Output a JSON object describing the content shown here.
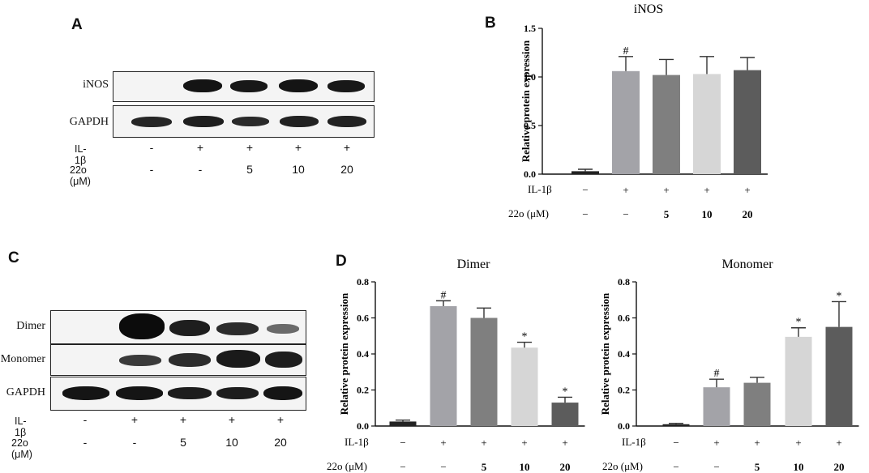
{
  "panels": {
    "A": {
      "letter": "A",
      "blot_rows": [
        "iNOS",
        "GAPDH"
      ],
      "conditions": [
        {
          "label": "IL-1β",
          "values": [
            "-",
            "+",
            "+",
            "+",
            "+"
          ]
        },
        {
          "label": "22o (μM)",
          "values": [
            "-",
            "-",
            "5",
            "10",
            "20"
          ]
        }
      ]
    },
    "B": {
      "letter": "B"
    },
    "C": {
      "letter": "C",
      "blot_rows": [
        "Dimer",
        "Monomer",
        "GAPDH"
      ],
      "conditions": [
        {
          "label": "IL-1β",
          "values": [
            "-",
            "+",
            "+",
            "+",
            "+"
          ]
        },
        {
          "label": "22o (μM)",
          "values": [
            "-",
            "-",
            "5",
            "10",
            "20"
          ]
        }
      ]
    },
    "D": {
      "letter": "D"
    }
  },
  "chart_data": [
    {
      "id": "B",
      "type": "bar",
      "title": "iNOS",
      "xlabel": "",
      "ylabel": "Relative protein expression",
      "ylim": [
        0,
        1.5
      ],
      "yticks": [
        "0.0",
        "0.5",
        "1.0",
        "1.5"
      ],
      "yticks_values": [
        0,
        0.5,
        1.0,
        1.5
      ],
      "values": [
        0.03,
        1.06,
        1.02,
        1.03,
        1.07
      ],
      "errors": [
        0.02,
        0.15,
        0.16,
        0.18,
        0.13
      ],
      "annotations": [
        "",
        "#",
        "",
        "",
        ""
      ],
      "colors": [
        "#222222",
        "#a3a3a8",
        "#7f7f7f",
        "#d6d6d6",
        "#5c5c5c"
      ],
      "row_labels": [
        "IL-1β",
        "22o (μM)"
      ],
      "rows": [
        [
          "−",
          "+",
          "+",
          "+",
          "+"
        ],
        [
          "−",
          "−",
          "5",
          "10",
          "20"
        ]
      ]
    },
    {
      "id": "D1",
      "type": "bar",
      "title": "Dimer",
      "xlabel": "",
      "ylabel": "Relative protein expression",
      "ylim": [
        0,
        0.8
      ],
      "yticks": [
        "0.0",
        "0.2",
        "0.4",
        "0.6",
        "0.8"
      ],
      "yticks_values": [
        0,
        0.2,
        0.4,
        0.6,
        0.8
      ],
      "values": [
        0.025,
        0.665,
        0.6,
        0.435,
        0.13
      ],
      "errors": [
        0.008,
        0.03,
        0.055,
        0.03,
        0.03
      ],
      "annotations": [
        "",
        "#",
        "",
        "*",
        "*"
      ],
      "colors": [
        "#222222",
        "#a3a3a8",
        "#7f7f7f",
        "#d6d6d6",
        "#5c5c5c"
      ],
      "row_labels": [
        "IL-1β",
        "22o (μM)"
      ],
      "rows": [
        [
          "−",
          "+",
          "+",
          "+",
          "+"
        ],
        [
          "−",
          "−",
          "5",
          "10",
          "20"
        ]
      ]
    },
    {
      "id": "D2",
      "type": "bar",
      "title": "Monomer",
      "xlabel": "",
      "ylabel": "Relative protein expression",
      "ylim": [
        0,
        0.8
      ],
      "yticks": [
        "0.0",
        "0.2",
        "0.4",
        "0.6",
        "0.8"
      ],
      "yticks_values": [
        0,
        0.2,
        0.4,
        0.6,
        0.8
      ],
      "values": [
        0.01,
        0.215,
        0.24,
        0.495,
        0.55
      ],
      "errors": [
        0.005,
        0.045,
        0.03,
        0.05,
        0.14
      ],
      "annotations": [
        "",
        "#",
        "",
        "*",
        "*"
      ],
      "colors": [
        "#222222",
        "#a3a3a8",
        "#7f7f7f",
        "#d6d6d6",
        "#5c5c5c"
      ],
      "row_labels": [
        "IL-1β",
        "22o (μM)"
      ],
      "rows": [
        [
          "−",
          "+",
          "+",
          "+",
          "+"
        ],
        [
          "−",
          "−",
          "5",
          "10",
          "20"
        ]
      ]
    }
  ]
}
